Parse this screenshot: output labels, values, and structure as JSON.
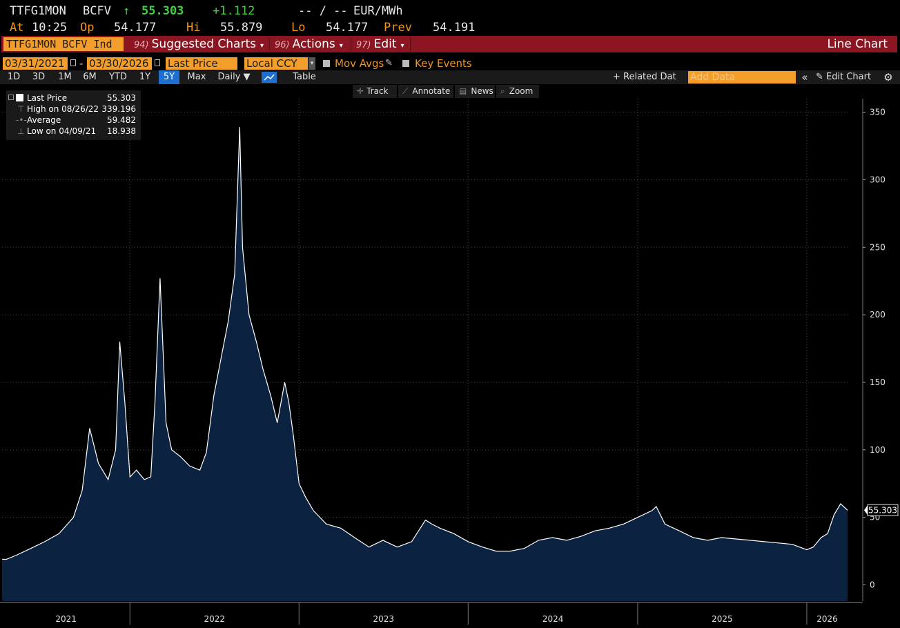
{
  "quote": {
    "ticker": "TTFG1MON",
    "source": "BCFV",
    "arrow": "↑",
    "last": "55.303",
    "change": "+1.112",
    "bidask": "-- / --",
    "unit": "EUR/MWh",
    "at_label": "At",
    "time": "10:25",
    "op_label": "Op",
    "open": "54.177",
    "hi_label": "Hi",
    "high": "55.879",
    "lo_label": "Lo",
    "low": "54.177",
    "prev_label": "Prev",
    "prev": "54.191"
  },
  "toolbar": {
    "security": "TTFG1MON BCFV Ind",
    "menus": [
      {
        "num": "94)",
        "label": "Suggested Charts"
      },
      {
        "num": "96)",
        "label": "Actions"
      },
      {
        "num": "97)",
        "label": "Edit"
      }
    ],
    "chart_type": "Line Chart"
  },
  "controls": {
    "start_date": "03/31/2021",
    "dash": "-",
    "end_date": "03/30/2026",
    "field": "Last Price",
    "currency": "Local CCY",
    "mov_avgs": "Mov Avgs",
    "key_events": "Key Events"
  },
  "ranges": {
    "buttons": [
      "1D",
      "3D",
      "1M",
      "6M",
      "YTD",
      "1Y",
      "5Y",
      "Max"
    ],
    "selected": "5Y",
    "frequency": "Daily ▼",
    "table": "Table",
    "related": "+ Related Dat",
    "add_data_placeholder": "Add Data",
    "collapse": "«",
    "edit_chart": "✎ Edit Chart",
    "settings": "⚙"
  },
  "tools": {
    "track": "Track",
    "annotate": "Annotate",
    "news": "News",
    "zoom": "Zoom"
  },
  "legend": {
    "last_label": "Last Price",
    "last_value": "55.303",
    "high_label": "High on 08/26/22",
    "high_value": "339.196",
    "avg_label": "Average",
    "avg_value": "59.482",
    "low_label": "Low on 04/09/21",
    "low_value": "18.938"
  },
  "colors": {
    "background": "#000000",
    "area_fill": "#0b2240",
    "line": "#ffffff",
    "accent_orange": "#f39e2b",
    "menu_red": "#8b1622",
    "up_green": "#3fd23f"
  },
  "chart_data": {
    "type": "area",
    "title": "",
    "xlabel": "",
    "ylabel": "",
    "x_ticks": [
      "2021",
      "2022",
      "2023",
      "2024",
      "2025",
      "2026"
    ],
    "y_ticks": [
      0,
      50,
      100,
      150,
      200,
      250,
      300,
      350
    ],
    "ylim": [
      -12,
      360
    ],
    "xlim": [
      "2021-03-31",
      "2026-03-30"
    ],
    "last_value_label": "55.303",
    "series": [
      {
        "x": [
          "2021-03-31",
          "2021-04-09",
          "2021-05-01",
          "2021-06-01",
          "2021-07-01",
          "2021-08-01",
          "2021-09-01",
          "2021-09-20",
          "2021-10-06",
          "2021-10-25",
          "2021-11-15",
          "2021-12-01",
          "2021-12-10",
          "2021-12-21",
          "2022-01-01",
          "2022-01-15",
          "2022-02-01",
          "2022-02-15",
          "2022-02-24",
          "2022-03-07",
          "2022-03-20",
          "2022-04-01",
          "2022-04-20",
          "2022-05-10",
          "2022-06-01",
          "2022-06-15",
          "2022-07-01",
          "2022-07-15",
          "2022-08-01",
          "2022-08-15",
          "2022-08-26",
          "2022-09-01",
          "2022-09-15",
          "2022-10-01",
          "2022-10-15",
          "2022-11-01",
          "2022-11-15",
          "2022-12-01",
          "2022-12-10",
          "2022-12-20",
          "2023-01-01",
          "2023-01-15",
          "2023-02-01",
          "2023-03-01",
          "2023-04-01",
          "2023-05-01",
          "2023-06-01",
          "2023-07-01",
          "2023-08-01",
          "2023-09-01",
          "2023-10-01",
          "2023-10-15",
          "2023-11-01",
          "2023-12-01",
          "2024-01-01",
          "2024-02-01",
          "2024-02-20",
          "2024-03-01",
          "2024-04-01",
          "2024-05-01",
          "2024-06-01",
          "2024-07-01",
          "2024-08-01",
          "2024-09-01",
          "2024-10-01",
          "2024-11-01",
          "2024-12-01",
          "2025-01-01",
          "2025-02-01",
          "2025-02-10",
          "2025-03-01",
          "2025-04-01",
          "2025-05-01",
          "2025-06-01",
          "2025-07-01",
          "2025-08-01",
          "2025-09-01",
          "2025-10-01",
          "2025-11-01",
          "2025-12-01",
          "2026-01-01",
          "2026-01-15",
          "2026-02-01",
          "2026-02-15",
          "2026-03-01",
          "2026-03-15",
          "2026-03-30"
        ],
        "values": [
          19,
          18.9,
          22,
          27,
          32,
          38,
          50,
          70,
          116,
          90,
          78,
          100,
          180,
          135,
          80,
          85,
          78,
          80,
          135,
          227,
          120,
          100,
          95,
          88,
          85,
          98,
          140,
          165,
          195,
          230,
          339,
          250,
          200,
          180,
          160,
          140,
          120,
          150,
          135,
          110,
          75,
          65,
          55,
          45,
          42,
          35,
          28,
          33,
          28,
          32,
          48,
          45,
          42,
          38,
          32,
          28,
          26,
          25,
          25,
          27,
          33,
          35,
          33,
          36,
          40,
          42,
          45,
          50,
          55,
          58,
          45,
          40,
          35,
          33,
          35,
          34,
          33,
          32,
          31,
          30,
          26,
          28,
          35,
          38,
          52,
          60,
          55.3
        ]
      }
    ]
  }
}
